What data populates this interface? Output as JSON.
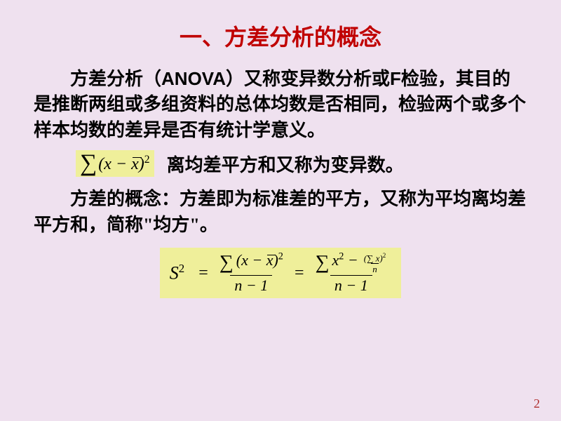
{
  "title": {
    "text": "一、方差分析的概念",
    "color": "#c00000",
    "fontsize": 32
  },
  "body": {
    "color": "#000000",
    "fontsize": 26,
    "fontweight": "bold"
  },
  "para1": {
    "seg1": "方差分析（",
    "anova": "ANOVA",
    "seg2": "）又称变异数分析或",
    "f": "F",
    "seg3": "检验，其目的是推断两组或多组资料的总体均数是否相同，检验两个或多个样本均数的差异是否有统计学意义。"
  },
  "formula1": {
    "bg": "#efef9a",
    "sigma_color": "#000000",
    "var": "x",
    "mean": "x",
    "exp": "2",
    "caption": "离均差平方和又称为变异数。"
  },
  "para2": "方差的概念：方差即为标准差的平方，又称为平均离均差平方和，简称\"均方\"。",
  "formula2": {
    "bg": "#efef9a",
    "lhs": "S",
    "lhs_exp": "2",
    "denom": "n − 1"
  },
  "page": "2",
  "page_color": "#b03030",
  "slide_bg": "#efe1ef"
}
